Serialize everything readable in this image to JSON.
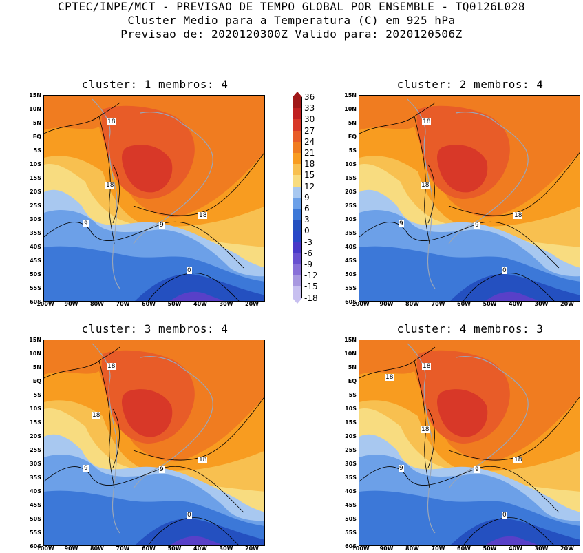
{
  "header": {
    "line1": "CPTEC/INPE/MCT - PREVISAO DE TEMPO GLOBAL POR ENSEMBLE - TQ0126L028",
    "line2": "Cluster Medio para a Temperatura (C) em 925 hPa",
    "line3": "Previsao de: 2020120300Z   Valido para: 2020120506Z"
  },
  "panels": [
    {
      "title": "cluster: 1  membros: 4",
      "labels": [
        "18",
        "18",
        "18",
        "9",
        "9",
        "0"
      ]
    },
    {
      "title": "cluster: 2  membros: 4",
      "labels": [
        "18",
        "18",
        "18",
        "9",
        "9",
        "0"
      ]
    },
    {
      "title": "cluster: 3  membros: 4",
      "labels": [
        "18",
        "18",
        "18",
        "9",
        "9",
        "0"
      ]
    },
    {
      "title": "cluster: 4  membros: 3",
      "labels": [
        "18",
        "18",
        "18",
        "18",
        "9",
        "9",
        "0"
      ]
    }
  ],
  "axes": {
    "lat_ticks": [
      "15N",
      "10N",
      "5N",
      "EQ",
      "5S",
      "10S",
      "15S",
      "20S",
      "25S",
      "30S",
      "35S",
      "40S",
      "45S",
      "50S",
      "55S",
      "60S"
    ],
    "lon_ticks": [
      "100W",
      "90W",
      "80W",
      "70W",
      "60W",
      "50W",
      "40W",
      "30W",
      "20W"
    ]
  },
  "colorbar": {
    "ticks": [
      "36",
      "33",
      "30",
      "27",
      "24",
      "21",
      "18",
      "15",
      "12",
      "9",
      "6",
      "3",
      "0",
      "-3",
      "-6",
      "-9",
      "-12",
      "-15",
      "-18"
    ],
    "colors": [
      "#a01818",
      "#c02020",
      "#d83828",
      "#e85c28",
      "#f07c20",
      "#f89c20",
      "#f8c050",
      "#f8dc80",
      "#a8c8f0",
      "#6ca0e8",
      "#3c78d8",
      "#2450c0",
      "#2848c8",
      "#4838c8",
      "#6850d0",
      "#8870d8",
      "#a898e0",
      "#c8c0f0"
    ]
  },
  "colors": {
    "warm_core": "#d83828",
    "warm": "#e85c28",
    "orange": "#f07c20",
    "light_orange": "#f89c20",
    "yellow": "#f8c050",
    "pale_yellow": "#f8dc80",
    "light_blue": "#a8c8f0",
    "blue": "#6ca0e8",
    "mid_blue": "#3c78d8",
    "deep_blue": "#2450c0",
    "purple": "#5840c8"
  }
}
